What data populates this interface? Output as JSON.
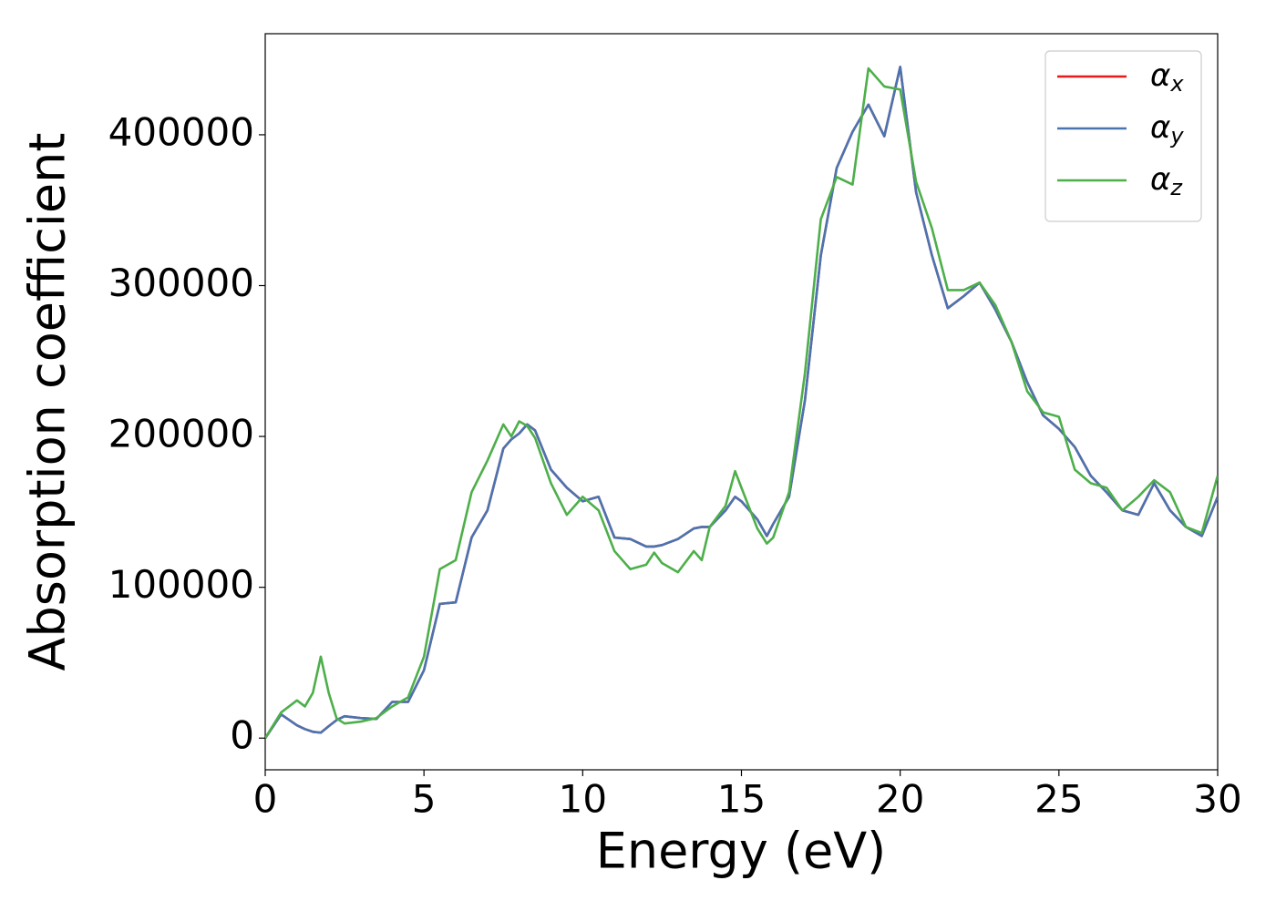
{
  "chart_data": {
    "type": "line",
    "x_label": "Energy (eV)",
    "y_label": "Absorption coefficient",
    "x": [
      0,
      0.5,
      1.0,
      1.25,
      1.5,
      1.75,
      2.0,
      2.25,
      2.5,
      3.0,
      3.5,
      4.0,
      4.5,
      5.0,
      5.5,
      6.0,
      6.5,
      7.0,
      7.5,
      7.75,
      8.0,
      8.25,
      8.5,
      9.0,
      9.5,
      10.0,
      10.5,
      11.0,
      11.5,
      12.0,
      12.25,
      12.5,
      13.0,
      13.5,
      13.75,
      14.0,
      14.5,
      14.8,
      15.0,
      15.5,
      15.8,
      16.0,
      16.5,
      17.0,
      17.5,
      18.0,
      18.5,
      19.0,
      19.5,
      20.0,
      20.5,
      21.0,
      21.5,
      22.0,
      22.5,
      23.0,
      23.5,
      24.0,
      24.5,
      25.0,
      25.5,
      26.0,
      26.5,
      27.0,
      27.5,
      28.0,
      28.5,
      29.0,
      29.5,
      30.0
    ],
    "series": [
      {
        "name": "αx",
        "color": "#e41a1c",
        "values": [
          0,
          15700,
          8500,
          6000,
          4200,
          3600,
          7900,
          12000,
          14500,
          13300,
          12700,
          24000,
          24000,
          45000,
          89000,
          90000,
          133000,
          151000,
          192000,
          198000,
          202000,
          208000,
          204000,
          178000,
          166000,
          157000,
          160000,
          133000,
          132000,
          127000,
          127000,
          128000,
          132000,
          139000,
          140000,
          140000,
          151000,
          160000,
          157000,
          145000,
          134000,
          142000,
          160000,
          224000,
          320000,
          378000,
          402000,
          420000,
          399000,
          445000,
          362000,
          320000,
          285000,
          293000,
          302000,
          284000,
          263000,
          236000,
          214000,
          205000,
          193000,
          174000,
          163000,
          151000,
          148000,
          169000,
          151000,
          140000,
          134000,
          160000
        ]
      },
      {
        "name": "αy",
        "color": "#4a74b0",
        "values": [
          0,
          15700,
          8500,
          6000,
          4200,
          3600,
          7900,
          12000,
          14500,
          13300,
          12700,
          24000,
          24000,
          45000,
          89000,
          90000,
          133000,
          151000,
          192000,
          198000,
          202000,
          208000,
          204000,
          178000,
          166000,
          157000,
          160000,
          133000,
          132000,
          127000,
          127000,
          128000,
          132000,
          139000,
          140000,
          140000,
          151000,
          160000,
          157000,
          145000,
          134000,
          142000,
          160000,
          224000,
          320000,
          378000,
          402000,
          420000,
          399000,
          445000,
          362000,
          320000,
          285000,
          293000,
          302000,
          284000,
          263000,
          236000,
          214000,
          205000,
          193000,
          174000,
          163000,
          151000,
          148000,
          169000,
          151000,
          140000,
          134000,
          160000
        ]
      },
      {
        "name": "αz",
        "color": "#4daf4a",
        "values": [
          0,
          17000,
          25000,
          21000,
          30000,
          54000,
          30000,
          13000,
          9700,
          10900,
          13300,
          21000,
          27000,
          54000,
          112000,
          118000,
          163000,
          184000,
          208000,
          200000,
          210000,
          207000,
          199000,
          169000,
          148000,
          160000,
          151000,
          124000,
          112000,
          115000,
          123000,
          116000,
          110000,
          124000,
          118000,
          140000,
          154000,
          177000,
          166000,
          139000,
          129000,
          133000,
          163000,
          242000,
          344000,
          372000,
          367000,
          444000,
          432000,
          430000,
          369000,
          338000,
          297000,
          297000,
          302000,
          287000,
          263000,
          230000,
          216000,
          213000,
          178000,
          169000,
          166000,
          151000,
          160000,
          171000,
          163000,
          140000,
          136000,
          174000
        ]
      }
    ],
    "xlim": [
      0,
      30
    ],
    "xticks": [
      0,
      5,
      10,
      15,
      20,
      25,
      30
    ],
    "ylim": [
      -21000,
      467000
    ],
    "yticks": [
      0,
      100000,
      200000,
      300000,
      400000
    ],
    "grid": false,
    "legend": "upper right"
  }
}
